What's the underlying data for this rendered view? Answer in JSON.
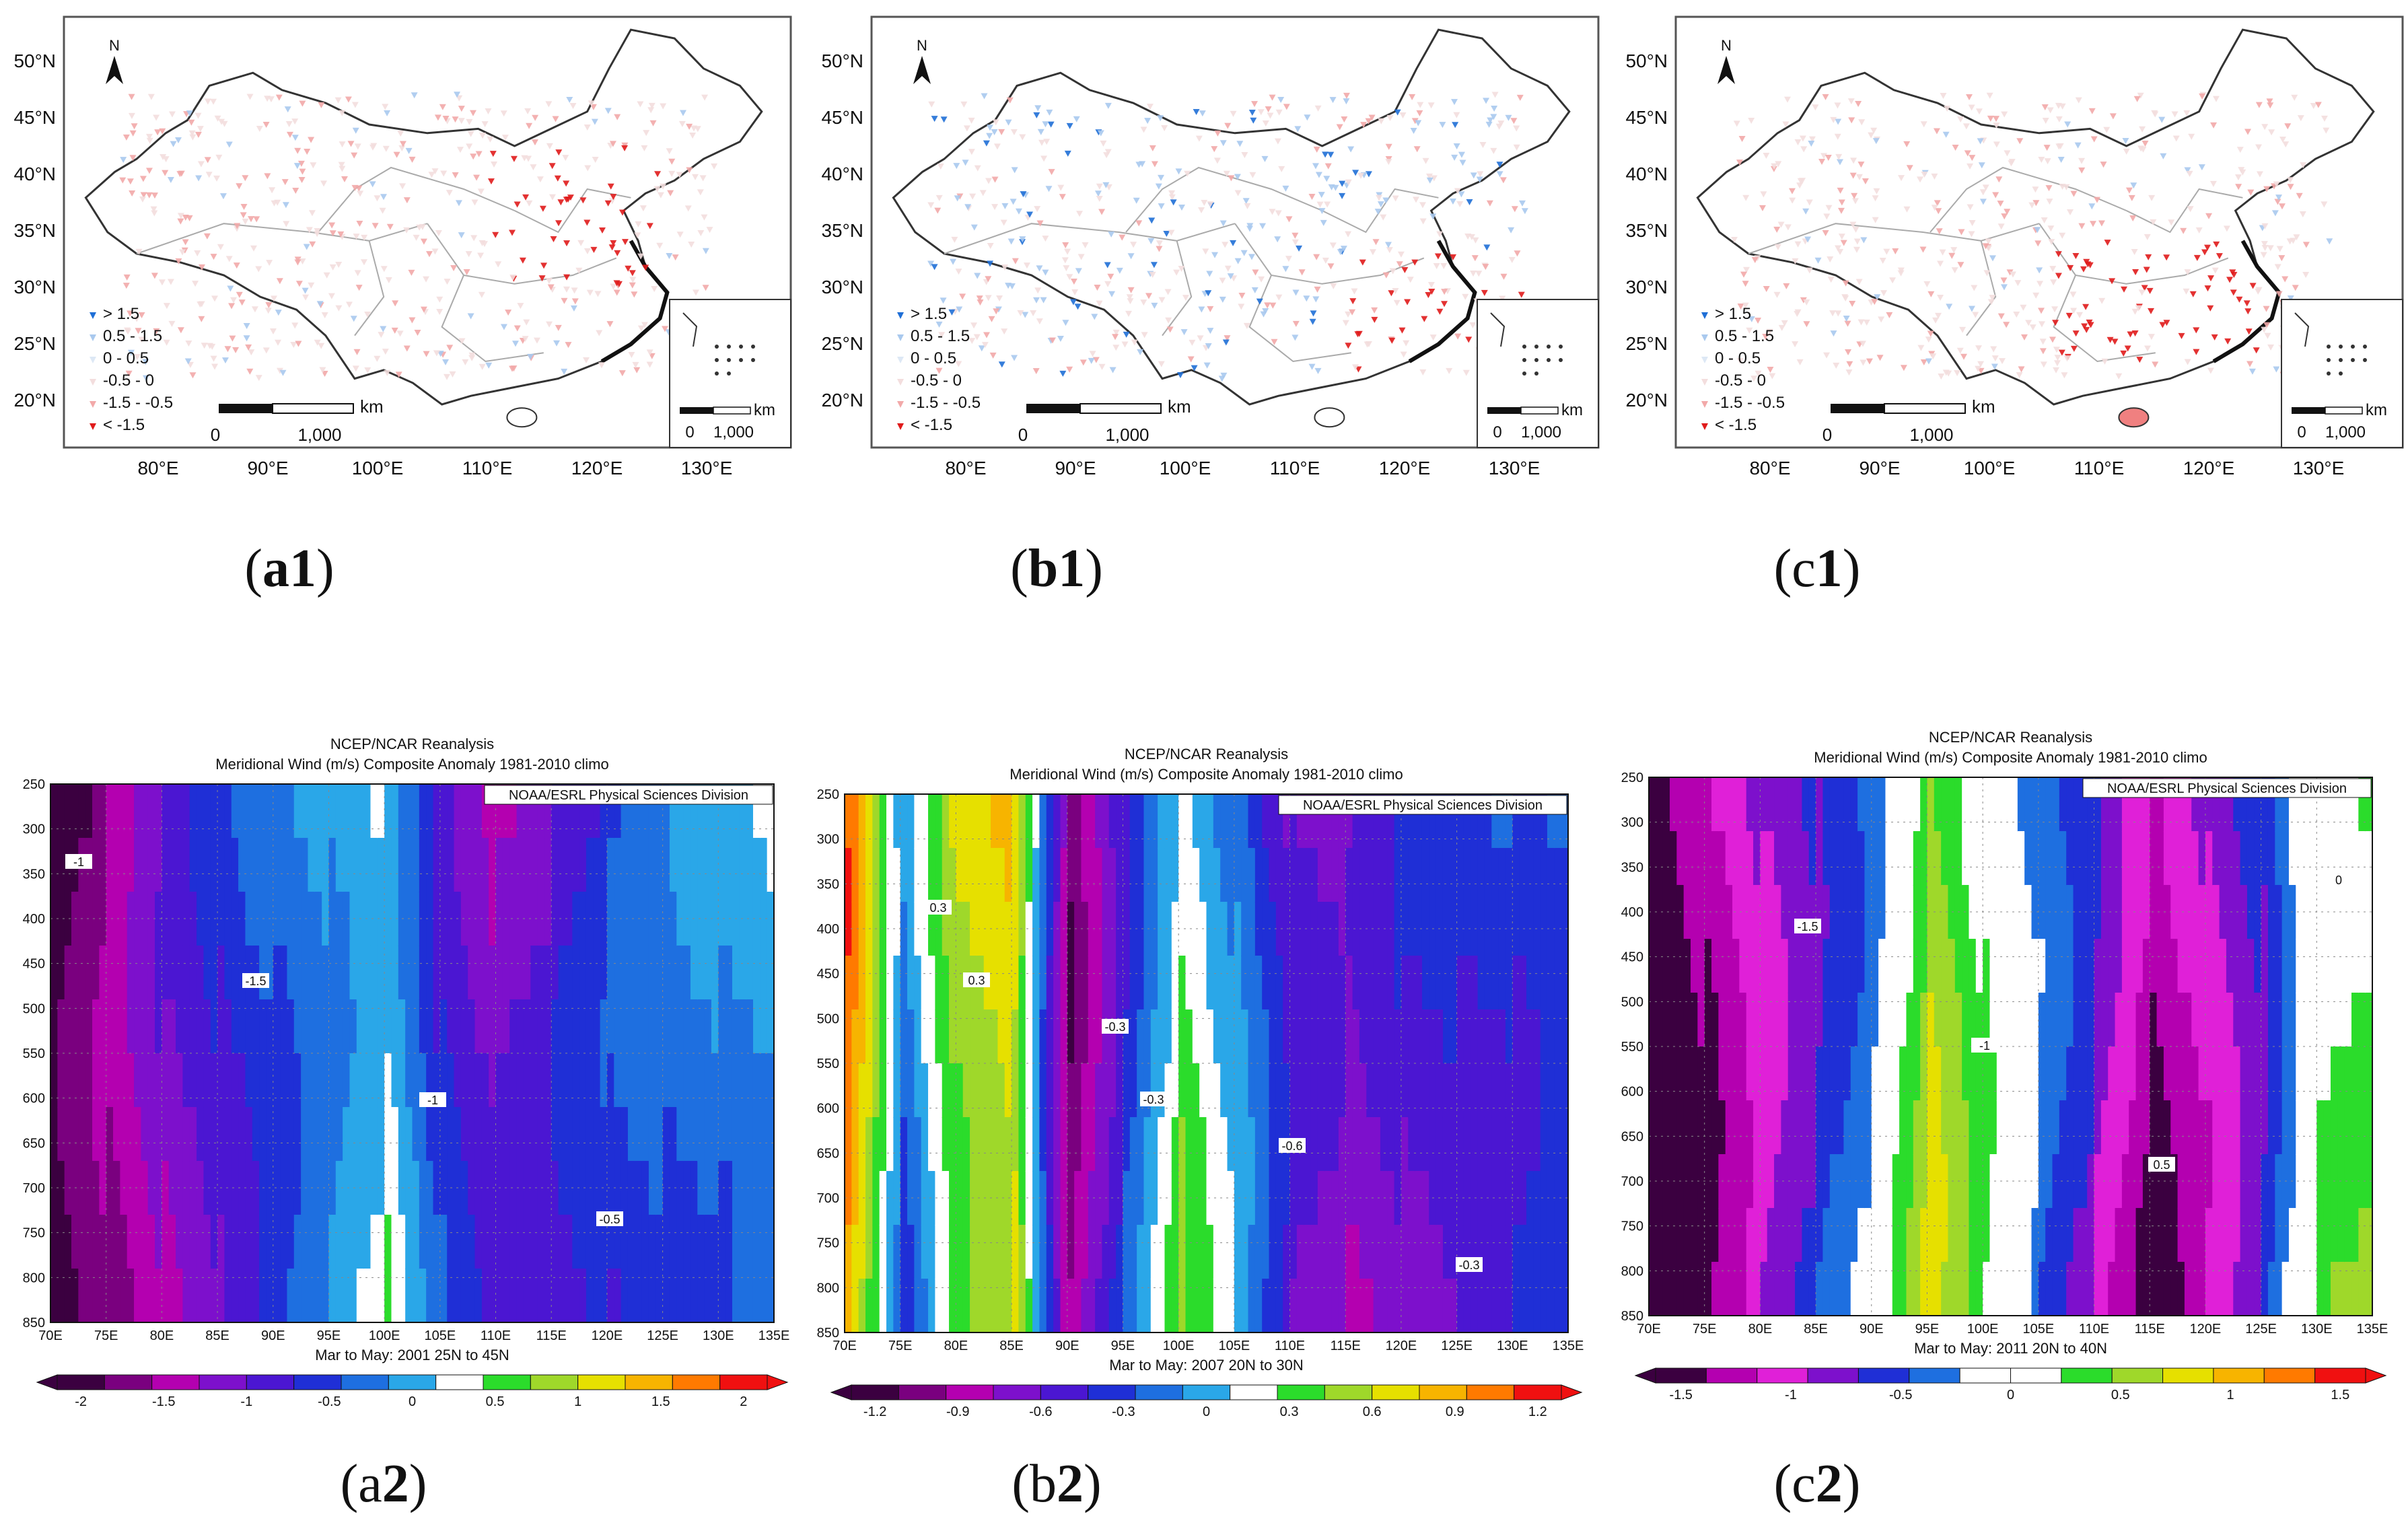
{
  "maps": [
    {
      "id": "a1",
      "caption_letter": "a",
      "caption_num": "1",
      "north_label": "N",
      "lat_labels": [
        "50°N",
        "45°N",
        "40°N",
        "35°N",
        "30°N",
        "25°N",
        "20°N"
      ],
      "lon_labels": [
        "80°E",
        "90°E",
        "100°E",
        "110°E",
        "120°E",
        "130°E"
      ],
      "legend": [
        {
          "label": "> 1.5",
          "color": "#1f6fd6"
        },
        {
          "label": "0.5 - 1.5",
          "color": "#a9c9ee"
        },
        {
          "label": "0 - 0.5",
          "color": "#dde8f5"
        },
        {
          "label": "-0.5 - 0",
          "color": "#f3dede"
        },
        {
          "label": "-1.5 - -0.5",
          "color": "#f2a9a9"
        },
        {
          "label": "< -1.5",
          "color": "#e01b1b"
        }
      ],
      "scale_unit": "km",
      "scale_zero": "0",
      "scale_max": "1,000",
      "inset_scale_unit": "km",
      "inset_scale_zero": "0",
      "inset_scale_max": "1,000",
      "dominant": "east-red"
    },
    {
      "id": "b1",
      "caption_letter": "b",
      "caption_num": "1",
      "north_label": "N",
      "lat_labels": [
        "50°N",
        "45°N",
        "40°N",
        "35°N",
        "30°N",
        "25°N",
        "20°N"
      ],
      "lon_labels": [
        "80°E",
        "90°E",
        "100°E",
        "110°E",
        "120°E",
        "130°E"
      ],
      "legend": [
        {
          "label": "> 1.5",
          "color": "#1f6fd6"
        },
        {
          "label": "0.5 - 1.5",
          "color": "#a9c9ee"
        },
        {
          "label": "0 - 0.5",
          "color": "#dde8f5"
        },
        {
          "label": "-0.5 - 0",
          "color": "#f3dede"
        },
        {
          "label": "-1.5 - -0.5",
          "color": "#f2a9a9"
        },
        {
          "label": "< -1.5",
          "color": "#e01b1b"
        }
      ],
      "scale_unit": "km",
      "scale_zero": "0",
      "scale_max": "1,000",
      "inset_scale_unit": "km",
      "inset_scale_zero": "0",
      "inset_scale_max": "1,000",
      "dominant": "mixed-blue"
    },
    {
      "id": "c1",
      "caption_letter": "c",
      "caption_num": "1",
      "north_label": "N",
      "lat_labels": [
        "50°N",
        "45°N",
        "40°N",
        "35°N",
        "30°N",
        "25°N",
        "20°N"
      ],
      "lon_labels": [
        "80°E",
        "90°E",
        "100°E",
        "110°E",
        "120°E",
        "130°E"
      ],
      "legend": [
        {
          "label": "> 1.5",
          "color": "#1f6fd6"
        },
        {
          "label": "0.5 - 1.5",
          "color": "#a9c9ee"
        },
        {
          "label": "0 - 0.5",
          "color": "#dde8f5"
        },
        {
          "label": "-0.5 - 0",
          "color": "#f3dede"
        },
        {
          "label": "-1.5 - -0.5",
          "color": "#f2a9a9"
        },
        {
          "label": "< -1.5",
          "color": "#e01b1b"
        }
      ],
      "scale_unit": "km",
      "scale_zero": "0",
      "scale_max": "1,000",
      "inset_scale_unit": "km",
      "inset_scale_zero": "0",
      "inset_scale_max": "1,000",
      "dominant": "south-red"
    }
  ],
  "charts": [
    {
      "id": "a2",
      "caption_letter": "a",
      "caption_num": "2",
      "title_line1": "NCEP/NCAR Reanalysis",
      "title_line2": "Meridional Wind (m/s) Composite Anomaly 1981-2010 climo",
      "credit": "NOAA/ESRL Physical Sciences Division",
      "subtitle": "Mar to May: 2001 25N to 45N",
      "y_ticks": [
        "250",
        "300",
        "350",
        "400",
        "450",
        "500",
        "550",
        "600",
        "650",
        "700",
        "750",
        "800",
        "850"
      ],
      "x_ticks": [
        "70E",
        "75E",
        "80E",
        "85E",
        "90E",
        "95E",
        "100E",
        "105E",
        "110E",
        "115E",
        "120E",
        "125E",
        "130E",
        "135E"
      ],
      "colorbar_ticks": [
        "-2",
        "-1.5",
        "-1",
        "-0.5",
        "0",
        "0.5",
        "1",
        "1.5",
        "2"
      ],
      "contour_labels": [
        "-1",
        "-1.5",
        "-1",
        "-0.5"
      ],
      "bands": [
        {
          "x": 70,
          "level": -2.0
        },
        {
          "x": 75,
          "level": -1.6
        },
        {
          "x": 80,
          "level": -1.1
        },
        {
          "x": 85,
          "level": -0.7
        },
        {
          "x": 90,
          "level": -0.3
        },
        {
          "x": 95,
          "level": 0.0
        },
        {
          "x": 100,
          "level": 0.3
        },
        {
          "x": 105,
          "level": -0.6
        },
        {
          "x": 110,
          "level": -1.1
        },
        {
          "x": 115,
          "level": -0.9
        },
        {
          "x": 120,
          "level": -0.6
        },
        {
          "x": 125,
          "level": -0.4
        },
        {
          "x": 130,
          "level": -0.2
        },
        {
          "x": 135,
          "level": 0.0
        }
      ],
      "palette": [
        "#3b0040",
        "#7a007f",
        "#b400b0",
        "#7d10cc",
        "#4b16d2",
        "#1f2fd6",
        "#1e6fe0",
        "#2aa7e8",
        "#ffffff",
        "#2bdc2b",
        "#9fd82a",
        "#e6e000",
        "#f7b400",
        "#ff7a00",
        "#f01010"
      ],
      "range": [
        -2,
        2
      ]
    },
    {
      "id": "b2",
      "caption_letter": "b",
      "caption_num": "2",
      "title_line1": "NCEP/NCAR Reanalysis",
      "title_line2": "Meridional Wind (m/s) Composite Anomaly 1981-2010 climo",
      "credit": "NOAA/ESRL Physical Sciences Division",
      "subtitle": "Mar to May: 2007 20N to 30N",
      "y_ticks": [
        "250",
        "300",
        "350",
        "400",
        "450",
        "500",
        "550",
        "600",
        "650",
        "700",
        "750",
        "800",
        "850"
      ],
      "x_ticks": [
        "70E",
        "75E",
        "80E",
        "85E",
        "90E",
        "95E",
        "100E",
        "105E",
        "110E",
        "115E",
        "120E",
        "125E",
        "130E",
        "135E"
      ],
      "colorbar_ticks": [
        "-1.2",
        "-0.9",
        "-0.6",
        "-0.3",
        "0",
        "0.3",
        "0.6",
        "0.9",
        "1.2"
      ],
      "contour_labels": [
        "0.3",
        "-0.3",
        "-0.6",
        "-0.3",
        "0.3",
        "-0.3"
      ],
      "bands": [
        {
          "x": 70,
          "level": 0.9
        },
        {
          "x": 75,
          "level": -0.2
        },
        {
          "x": 80,
          "level": 0.5
        },
        {
          "x": 85,
          "level": 0.7
        },
        {
          "x": 90,
          "level": -0.9
        },
        {
          "x": 95,
          "level": -0.3
        },
        {
          "x": 100,
          "level": 0.3
        },
        {
          "x": 105,
          "level": -0.1
        },
        {
          "x": 110,
          "level": -0.6
        },
        {
          "x": 115,
          "level": -0.7
        },
        {
          "x": 120,
          "level": -0.5
        },
        {
          "x": 125,
          "level": -0.4
        },
        {
          "x": 130,
          "level": -0.3
        },
        {
          "x": 135,
          "level": -0.2
        }
      ],
      "palette": [
        "#3b0040",
        "#7a007f",
        "#b400b0",
        "#7d10cc",
        "#4b16d2",
        "#1f2fd6",
        "#1e6fe0",
        "#2aa7e8",
        "#ffffff",
        "#2bdc2b",
        "#9fd82a",
        "#e6e000",
        "#f7b400",
        "#ff7a00",
        "#f01010"
      ],
      "range": [
        -1.2,
        1.2
      ]
    },
    {
      "id": "c2",
      "caption_letter": "c",
      "caption_num": "2",
      "title_line1": "NCEP/NCAR Reanalysis",
      "title_line2": "Meridional Wind (m/s) Composite Anomaly 1981-2010 climo",
      "credit": "NOAA/ESRL Physical Sciences Division",
      "subtitle": "Mar to May: 2011 20N to 40N",
      "y_ticks": [
        "250",
        "300",
        "350",
        "400",
        "450",
        "500",
        "550",
        "600",
        "650",
        "700",
        "750",
        "800",
        "850"
      ],
      "x_ticks": [
        "70E",
        "75E",
        "80E",
        "85E",
        "90E",
        "95E",
        "100E",
        "105E",
        "110E",
        "115E",
        "120E",
        "125E",
        "130E",
        "135E"
      ],
      "colorbar_ticks": [
        "-1.5",
        "-1",
        "-0.5",
        "0",
        "0.5",
        "1",
        "1.5"
      ],
      "contour_labels": [
        "-1.5",
        "-1",
        "0.5",
        "0"
      ],
      "bands": [
        {
          "x": 70,
          "level": -1.6
        },
        {
          "x": 75,
          "level": -1.2
        },
        {
          "x": 80,
          "level": -0.8
        },
        {
          "x": 85,
          "level": -0.5
        },
        {
          "x": 90,
          "level": -0.2
        },
        {
          "x": 95,
          "level": 0.6
        },
        {
          "x": 100,
          "level": 0.1
        },
        {
          "x": 105,
          "level": -0.4
        },
        {
          "x": 110,
          "level": -0.8
        },
        {
          "x": 115,
          "level": -1.3
        },
        {
          "x": 120,
          "level": -0.9
        },
        {
          "x": 125,
          "level": -0.5
        },
        {
          "x": 130,
          "level": 0.3
        },
        {
          "x": 135,
          "level": 0.4
        }
      ],
      "palette": [
        "#3b0040",
        "#b400b0",
        "#e020d8",
        "#7d10cc",
        "#1f2fd6",
        "#1e6fe0",
        "#ffffff",
        "#ffffff",
        "#2bdc2b",
        "#9fd82a",
        "#e6e000",
        "#f7b400",
        "#ff7a00",
        "#f01010"
      ],
      "range": [
        -1.5,
        1.5
      ]
    }
  ]
}
